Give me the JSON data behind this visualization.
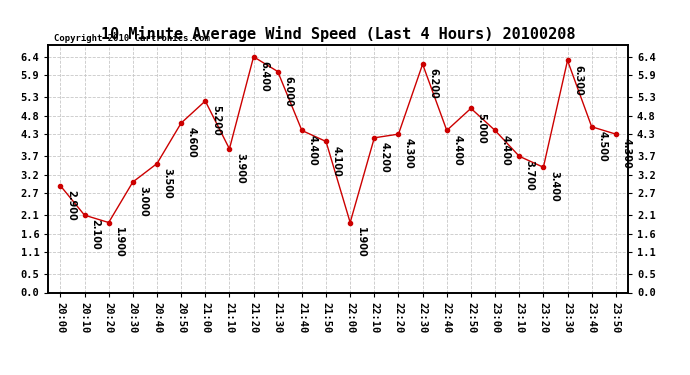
{
  "title": "10 Minute Average Wind Speed (Last 4 Hours) 20100208",
  "copyright": "Copyright 2010 Cartronics.com",
  "times": [
    "20:00",
    "20:10",
    "20:20",
    "20:30",
    "20:40",
    "20:50",
    "21:00",
    "21:10",
    "21:20",
    "21:30",
    "21:40",
    "21:50",
    "22:00",
    "22:10",
    "22:20",
    "22:30",
    "22:40",
    "22:50",
    "23:00",
    "23:10",
    "23:20",
    "23:30",
    "23:40",
    "23:50"
  ],
  "values": [
    2.9,
    2.1,
    1.9,
    3.0,
    3.5,
    4.6,
    5.2,
    3.9,
    6.4,
    6.0,
    4.4,
    4.1,
    1.9,
    4.2,
    4.3,
    6.2,
    4.4,
    5.0,
    4.4,
    3.7,
    3.4,
    6.3,
    4.5,
    4.3
  ],
  "line_color": "#cc0000",
  "marker_color": "#cc0000",
  "bg_color": "#ffffff",
  "grid_color": "#c8c8c8",
  "ylim": [
    0.0,
    6.72
  ],
  "yticks": [
    0.0,
    0.5,
    1.1,
    1.6,
    2.1,
    2.7,
    3.2,
    3.7,
    4.3,
    4.8,
    5.3,
    5.9,
    6.4
  ],
  "title_fontsize": 11,
  "label_fontsize": 7.5,
  "annot_fontsize": 7,
  "fig_width": 6.9,
  "fig_height": 3.75
}
